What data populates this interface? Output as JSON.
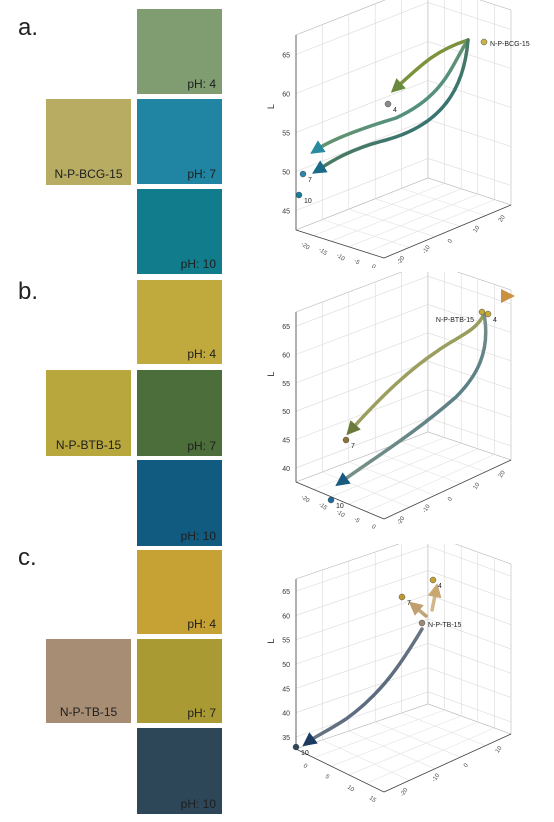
{
  "panels": [
    {
      "label": "a.",
      "ref_name": "N-P-BCG-15",
      "ref_color": "#b7ac62",
      "swatches": [
        {
          "text": "pH: 4",
          "color": "#7f9d70"
        },
        {
          "text": "pH: 7",
          "color": "#1f85a3"
        },
        {
          "text": "pH: 10",
          "color": "#117c8b"
        }
      ]
    },
    {
      "label": "b.",
      "ref_name": "N-P-BTB-15",
      "ref_color": "#b7a73c",
      "swatches": [
        {
          "text": "pH: 4",
          "color": "#c0a93d"
        },
        {
          "text": "pH: 7",
          "color": "#4b6e3a"
        },
        {
          "text": "pH: 10",
          "color": "#125b80"
        }
      ]
    },
    {
      "label": "c.",
      "ref_name": "N-P-TB-15",
      "ref_color": "#a88d75",
      "swatches": [
        {
          "text": "pH: 4",
          "color": "#c6a234"
        },
        {
          "text": "pH: 7",
          "color": "#aa9a34"
        },
        {
          "text": "pH: 10",
          "color": "#2e4758"
        }
      ]
    }
  ],
  "chart_data": [
    {
      "type": "scatter",
      "title": "",
      "zlabel": "L",
      "z_ticks": [
        "45",
        "50",
        "55",
        "60",
        "65"
      ],
      "x_ticks": [
        "-20",
        "-15",
        "-10",
        "-5",
        "0"
      ],
      "y_ticks": [
        "-20",
        "-10",
        "0",
        "10",
        "20"
      ],
      "points": [
        {
          "name": "N-P-BCG-15",
          "label": "N-P-BCG-15",
          "z": 67.5,
          "color": "#c8b24a"
        },
        {
          "name": "pH 4",
          "label": "4",
          "z": 60,
          "color": "#8a8a8a"
        },
        {
          "name": "pH 7",
          "label": "7",
          "z": 48,
          "color": "#2c86b0"
        },
        {
          "name": "pH 10",
          "label": "10",
          "z": 46,
          "color": "#177f9a"
        }
      ]
    },
    {
      "type": "scatter",
      "title": "",
      "zlabel": "L",
      "z_ticks": [
        "40",
        "45",
        "50",
        "55",
        "60",
        "65"
      ],
      "x_ticks": [
        "-20",
        "-15",
        "-10",
        "-5",
        "0"
      ],
      "y_ticks": [
        "-20",
        "-10",
        "0",
        "10",
        "20"
      ],
      "points": [
        {
          "name": "N-P-BTB-15",
          "label": "N-P-BTB-15",
          "z": 65,
          "color": "#c2a838"
        },
        {
          "name": "pH 4",
          "label": "4",
          "z": 65,
          "color": "#c6aa38"
        },
        {
          "name": "pH 7",
          "label": "7",
          "z": 47,
          "color": "#8a7438"
        },
        {
          "name": "pH 10",
          "label": "10",
          "z": 42,
          "color": "#1e6a9a"
        }
      ]
    },
    {
      "type": "scatter",
      "title": "",
      "zlabel": "L",
      "z_ticks": [
        "35",
        "40",
        "45",
        "50",
        "55",
        "60",
        "65"
      ],
      "x_ticks": [
        "0",
        "5",
        "10",
        "15"
      ],
      "y_ticks": [
        "-20",
        "-10",
        "0",
        "10"
      ],
      "points": [
        {
          "name": "N-P-TB-15",
          "label": "N-P-TB-15",
          "z": 59,
          "color": "#9a8878"
        },
        {
          "name": "pH 4",
          "label": "4",
          "z": 64,
          "color": "#c6a234"
        },
        {
          "name": "pH 7",
          "label": "7",
          "z": 62,
          "color": "#c09a30"
        },
        {
          "name": "pH 10",
          "label": "10",
          "z": 34,
          "color": "#2e4758"
        }
      ]
    }
  ]
}
